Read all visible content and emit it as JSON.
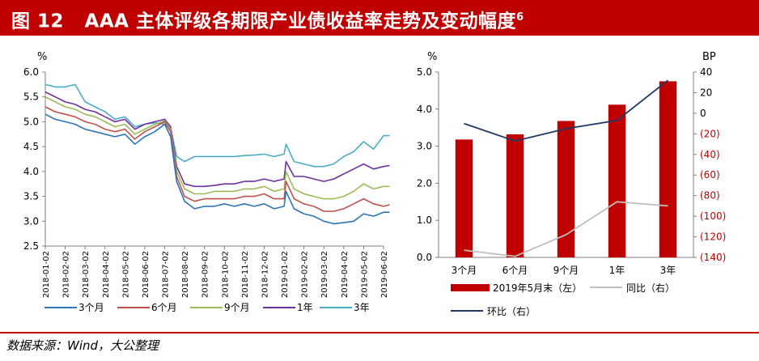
{
  "title": {
    "figure_no": "图 12",
    "text": "AAA 主体评级各期限产业债收益率走势及变动幅度",
    "footnote_mark": "6"
  },
  "source": "数据来源：Wind，大公整理",
  "colors": {
    "brand_red": "#c00000",
    "line_3m": "#2e75b6",
    "line_6m": "#c0504d",
    "line_9m": "#9bbb59",
    "line_1y": "#7030a0",
    "line_3y": "#4bacc6",
    "bar": "#c00000",
    "yoy": "#bfbfbf",
    "mom": "#1f3864"
  },
  "chart_data": [
    {
      "type": "line",
      "ylabel": "%",
      "ylim": [
        2.5,
        6.0
      ],
      "yticks": [
        "6.0",
        "5.5",
        "5.0",
        "4.5",
        "4.0",
        "3.5",
        "3.0",
        "2.5"
      ],
      "xticks": [
        "2018-01-02",
        "2018-02-02",
        "2018-03-02",
        "2018-04-02",
        "2018-05-02",
        "2018-06-02",
        "2018-07-02",
        "2018-08-02",
        "2018-09-02",
        "2018-10-02",
        "2018-11-02",
        "2018-12-02",
        "2019-01-02",
        "2019-02-02",
        "2019-03-02",
        "2019-04-02",
        "2019-05-02",
        "2019-06-02"
      ],
      "x": [
        0,
        0.5,
        1,
        1.5,
        2,
        2.5,
        3,
        3.5,
        4,
        4.5,
        5,
        5.5,
        6,
        6.3,
        6.6,
        7,
        7.5,
        8,
        8.5,
        9,
        9.5,
        10,
        10.5,
        11,
        11.5,
        12,
        12.1,
        12.5,
        13,
        13.5,
        14,
        14.5,
        15,
        15.5,
        16,
        16.5,
        17,
        17.3
      ],
      "series": [
        {
          "name": "3个月",
          "values": [
            5.15,
            5.05,
            5.0,
            4.95,
            4.85,
            4.8,
            4.75,
            4.7,
            4.75,
            4.55,
            4.7,
            4.8,
            4.95,
            4.7,
            3.8,
            3.4,
            3.25,
            3.3,
            3.3,
            3.35,
            3.3,
            3.35,
            3.3,
            3.35,
            3.25,
            3.3,
            3.6,
            3.25,
            3.15,
            3.1,
            3.0,
            2.95,
            2.97,
            3.0,
            3.15,
            3.1,
            3.18,
            3.18
          ]
        },
        {
          "name": "6个月",
          "values": [
            5.3,
            5.2,
            5.15,
            5.1,
            5.0,
            4.95,
            4.85,
            4.8,
            4.85,
            4.65,
            4.8,
            4.9,
            5.0,
            4.8,
            3.9,
            3.5,
            3.4,
            3.45,
            3.45,
            3.45,
            3.45,
            3.5,
            3.5,
            3.55,
            3.45,
            3.45,
            3.8,
            3.45,
            3.35,
            3.3,
            3.2,
            3.2,
            3.25,
            3.35,
            3.45,
            3.35,
            3.3,
            3.33
          ]
        },
        {
          "name": "9个月",
          "values": [
            5.5,
            5.4,
            5.3,
            5.25,
            5.15,
            5.1,
            5.0,
            4.9,
            4.95,
            4.75,
            4.85,
            4.95,
            5.02,
            4.85,
            4.0,
            3.65,
            3.55,
            3.55,
            3.6,
            3.6,
            3.6,
            3.65,
            3.65,
            3.7,
            3.6,
            3.65,
            4.0,
            3.65,
            3.55,
            3.5,
            3.45,
            3.45,
            3.5,
            3.6,
            3.75,
            3.65,
            3.7,
            3.7
          ]
        },
        {
          "name": "1年",
          "values": [
            5.6,
            5.5,
            5.4,
            5.35,
            5.25,
            5.2,
            5.1,
            5.0,
            5.05,
            4.85,
            4.95,
            5.0,
            5.05,
            4.9,
            4.1,
            3.75,
            3.7,
            3.7,
            3.72,
            3.75,
            3.75,
            3.8,
            3.8,
            3.85,
            3.8,
            3.85,
            4.2,
            3.9,
            3.9,
            3.85,
            3.8,
            3.85,
            3.95,
            4.05,
            4.15,
            4.05,
            4.1,
            4.12
          ]
        },
        {
          "name": "3年",
          "values": [
            5.75,
            5.7,
            5.7,
            5.75,
            5.4,
            5.3,
            5.2,
            5.05,
            5.1,
            4.9,
            4.95,
            4.98,
            4.95,
            4.88,
            4.3,
            4.2,
            4.3,
            4.3,
            4.3,
            4.3,
            4.3,
            4.32,
            4.33,
            4.35,
            4.3,
            4.35,
            4.55,
            4.2,
            4.15,
            4.1,
            4.1,
            4.15,
            4.3,
            4.4,
            4.6,
            4.45,
            4.72,
            4.72
          ]
        }
      ],
      "legend": "bottom"
    },
    {
      "type": "bar",
      "categories": [
        "3个月",
        "6个月",
        "9个月",
        "1年",
        "3年"
      ],
      "ylabel_left": "%",
      "ylabel_right": "BP",
      "ylim_left": [
        0.0,
        5.0
      ],
      "ylim_right": [
        -140,
        40
      ],
      "yticks_left": [
        "5.0",
        "4.0",
        "3.0",
        "2.0",
        "1.0",
        "0.0"
      ],
      "yticks_right": [
        "40",
        "20",
        "0",
        "(20)",
        "(40)",
        "(60)",
        "(80)",
        "(100)",
        "(120)",
        "(140)"
      ],
      "series": [
        {
          "name": "2019年5月末（左）",
          "kind": "bar",
          "axis": "left",
          "values": [
            3.18,
            3.32,
            3.68,
            4.12,
            4.75
          ]
        },
        {
          "name": "同比（右）",
          "kind": "line",
          "axis": "right",
          "values": [
            -133,
            -139,
            -118,
            -86,
            -90
          ]
        },
        {
          "name": "环比（右）",
          "kind": "line",
          "axis": "right",
          "values": [
            -10,
            -27,
            -15,
            -7,
            32
          ]
        }
      ],
      "legend": "bottom"
    }
  ]
}
